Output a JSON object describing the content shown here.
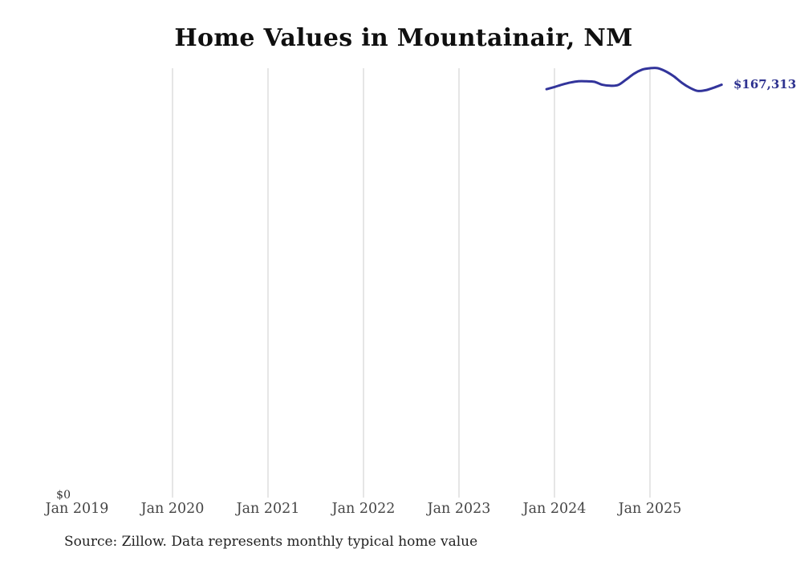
{
  "page": {
    "background": "#ffffff"
  },
  "chart": {
    "title": "Home Values in Mountainair, NM",
    "end_label": "$167,313",
    "y_zero_label": "$0",
    "source": "Source: Zillow. Data represents monthly typical home value",
    "colors": {
      "line": "#32349b",
      "end_label": "#2d318f",
      "gridline": "#cccccc",
      "axis_text": "#454545",
      "title": "#0f0f0f",
      "source_text": "#222222",
      "background": "#ffffff"
    }
  },
  "chart_data": {
    "type": "line",
    "title": "Home Values in Mountainair, NM",
    "xlabel": "",
    "ylabel": "",
    "x_tick_labels": [
      "Jan 2019",
      "Jan 2020",
      "Jan 2021",
      "Jan 2022",
      "Jan 2023",
      "Jan 2024",
      "Jan 2025"
    ],
    "y_tick_labels": [
      "$0"
    ],
    "ylim": [
      0,
      174000
    ],
    "grid": "vertical-gridlines-only",
    "legend": "none",
    "annotation_end_label": "$167,313",
    "x": [
      "2023-12",
      "2024-01",
      "2024-02",
      "2024-03",
      "2024-04",
      "2024-05",
      "2024-06",
      "2024-07",
      "2024-08",
      "2024-09",
      "2024-10",
      "2024-11",
      "2024-12",
      "2025-01",
      "2025-02",
      "2025-03",
      "2025-04",
      "2025-05",
      "2025-06",
      "2025-07",
      "2025-08",
      "2025-09",
      "2025-10"
    ],
    "series": [
      {
        "name": "Typical home value",
        "values": [
          165500,
          166400,
          167400,
          168200,
          168700,
          168700,
          168500,
          167300,
          166900,
          167200,
          169400,
          171800,
          173400,
          174000,
          174000,
          172700,
          170700,
          168100,
          166100,
          164800,
          165100,
          166100,
          167313
        ]
      }
    ]
  }
}
